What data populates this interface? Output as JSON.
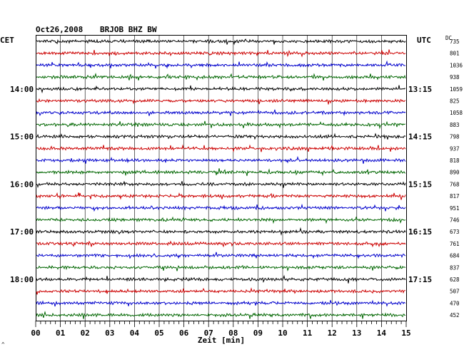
{
  "header": {
    "date": "Oct26,2008",
    "station": "BRJOB BHZ BW",
    "left_zone": "CET",
    "right_zone": "UTC",
    "dc_label": "DC"
  },
  "footer_mark": "^",
  "chart_data": {
    "type": "line",
    "title": "",
    "xlabel": "Zeit [min]",
    "xlim": [
      0,
      15
    ],
    "x_ticks": [
      "00",
      "01",
      "02",
      "03",
      "04",
      "05",
      "06",
      "07",
      "08",
      "09",
      "10",
      "11",
      "12",
      "13",
      "14",
      "15"
    ],
    "trace_colors": [
      "#000000",
      "#cc0000",
      "#0000cc",
      "#006600"
    ],
    "grid": true,
    "traces_per_hour": 4,
    "left_hour_labels": [
      {
        "trace": 4,
        "label": "14:00"
      },
      {
        "trace": 8,
        "label": "15:00"
      },
      {
        "trace": 12,
        "label": "16:00"
      },
      {
        "trace": 16,
        "label": "17:00"
      },
      {
        "trace": 20,
        "label": "18:00"
      }
    ],
    "right_hour_labels": [
      {
        "trace": 4,
        "label": "13:15"
      },
      {
        "trace": 8,
        "label": "14:15"
      },
      {
        "trace": 12,
        "label": "15:15"
      },
      {
        "trace": 16,
        "label": "16:15"
      },
      {
        "trace": 20,
        "label": "17:15"
      }
    ],
    "dc_values": [
      "735",
      "801",
      "1036",
      "938",
      "1059",
      "825",
      "1058",
      "883",
      "798",
      "937",
      "818",
      "890",
      "768",
      "817",
      "951",
      "746",
      "673",
      "761",
      "684",
      "837",
      "628",
      "507",
      "470",
      "452"
    ],
    "series_note": ""
  }
}
